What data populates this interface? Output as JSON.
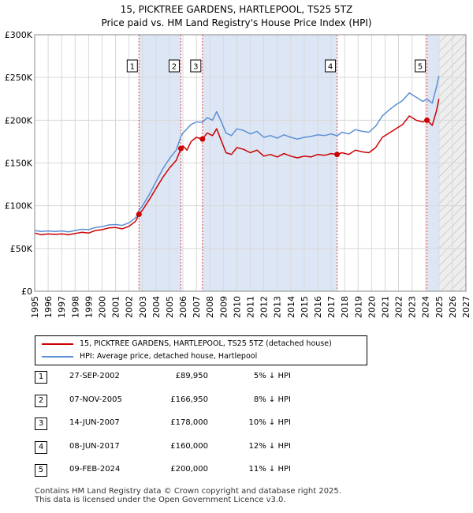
{
  "title_line1": "15, PICKTREE GARDENS, HARTLEPOOL, TS25 5TZ",
  "title_line2": "Price paid vs. HM Land Registry's House Price Index (HPI)",
  "colors": {
    "price_line": "#cc0000",
    "hpi_line": "#5b8fd4",
    "marker": "#cc0000",
    "shade": "#dde6f5",
    "vline": "#dd4444"
  },
  "chart_data": {
    "type": "line",
    "xlim": [
      1995,
      2027
    ],
    "ylim": [
      0,
      300000
    ],
    "y_ticks": [
      {
        "value": 0,
        "label": "£0"
      },
      {
        "value": 50000,
        "label": "£50K"
      },
      {
        "value": 100000,
        "label": "£100K"
      },
      {
        "value": 150000,
        "label": "£150K"
      },
      {
        "value": 200000,
        "label": "£200K"
      },
      {
        "value": 250000,
        "label": "£250K"
      },
      {
        "value": 300000,
        "label": "£300K"
      }
    ],
    "x_ticks": [
      "1995",
      "1996",
      "1997",
      "1998",
      "1999",
      "2000",
      "2001",
      "2002",
      "2003",
      "2004",
      "2005",
      "2006",
      "2007",
      "2008",
      "2009",
      "2010",
      "2011",
      "2012",
      "2013",
      "2014",
      "2015",
      "2016",
      "2017",
      "2018",
      "2019",
      "2020",
      "2021",
      "2022",
      "2023",
      "2024",
      "2025",
      "2026",
      "2027"
    ],
    "grid": true,
    "hatched_future_from": 2025.0,
    "series": [
      {
        "name": "15, PICKTREE GARDENS, HARTLEPOOL, TS25 5TZ (detached house)",
        "points": [
          [
            1995.0,
            68000
          ],
          [
            1995.5,
            66000
          ],
          [
            1996.0,
            67000
          ],
          [
            1996.5,
            66500
          ],
          [
            1997.0,
            67000
          ],
          [
            1997.5,
            66000
          ],
          [
            1998.0,
            67500
          ],
          [
            1998.5,
            69000
          ],
          [
            1999.0,
            68000
          ],
          [
            1999.5,
            71000
          ],
          [
            2000.0,
            72000
          ],
          [
            2000.5,
            74000
          ],
          [
            2001.0,
            74500
          ],
          [
            2001.5,
            73000
          ],
          [
            2002.0,
            76000
          ],
          [
            2002.5,
            82000
          ],
          [
            2002.74,
            89950
          ],
          [
            2003.0,
            95000
          ],
          [
            2003.5,
            107000
          ],
          [
            2004.0,
            120000
          ],
          [
            2004.5,
            133000
          ],
          [
            2005.0,
            144000
          ],
          [
            2005.5,
            153000
          ],
          [
            2005.85,
            166950
          ],
          [
            2006.0,
            170000
          ],
          [
            2006.3,
            165000
          ],
          [
            2006.6,
            175000
          ],
          [
            2007.0,
            180000
          ],
          [
            2007.45,
            178000
          ],
          [
            2007.8,
            185000
          ],
          [
            2008.2,
            182000
          ],
          [
            2008.5,
            190000
          ],
          [
            2008.8,
            178000
          ],
          [
            2009.2,
            162000
          ],
          [
            2009.6,
            160000
          ],
          [
            2010.0,
            168000
          ],
          [
            2010.5,
            166000
          ],
          [
            2011.0,
            162000
          ],
          [
            2011.5,
            165000
          ],
          [
            2012.0,
            158000
          ],
          [
            2012.5,
            160000
          ],
          [
            2013.0,
            157000
          ],
          [
            2013.5,
            161000
          ],
          [
            2014.0,
            158000
          ],
          [
            2014.5,
            156000
          ],
          [
            2015.0,
            158000
          ],
          [
            2015.5,
            157000
          ],
          [
            2016.0,
            160000
          ],
          [
            2016.5,
            159000
          ],
          [
            2017.0,
            161000
          ],
          [
            2017.44,
            160000
          ],
          [
            2017.8,
            162000
          ],
          [
            2018.3,
            160000
          ],
          [
            2018.8,
            165000
          ],
          [
            2019.3,
            163000
          ],
          [
            2019.8,
            162000
          ],
          [
            2020.3,
            168000
          ],
          [
            2020.8,
            180000
          ],
          [
            2021.3,
            185000
          ],
          [
            2021.8,
            190000
          ],
          [
            2022.3,
            195000
          ],
          [
            2022.8,
            205000
          ],
          [
            2023.3,
            200000
          ],
          [
            2023.8,
            198000
          ],
          [
            2024.11,
            200000
          ],
          [
            2024.5,
            194000
          ],
          [
            2024.8,
            210000
          ],
          [
            2025.0,
            225000
          ]
        ]
      },
      {
        "name": "HPI: Average price, detached house, Hartlepool",
        "points": [
          [
            1995.0,
            71000
          ],
          [
            1995.5,
            70000
          ],
          [
            1996.0,
            70500
          ],
          [
            1996.5,
            70000
          ],
          [
            1997.0,
            70500
          ],
          [
            1997.5,
            69500
          ],
          [
            1998.0,
            71000
          ],
          [
            1998.5,
            72500
          ],
          [
            1999.0,
            72000
          ],
          [
            1999.5,
            74500
          ],
          [
            2000.0,
            75500
          ],
          [
            2000.5,
            77500
          ],
          [
            2001.0,
            78000
          ],
          [
            2001.5,
            77000
          ],
          [
            2002.0,
            80000
          ],
          [
            2002.5,
            86000
          ],
          [
            2002.74,
            94500
          ],
          [
            2003.0,
            100000
          ],
          [
            2003.5,
            113000
          ],
          [
            2004.0,
            128000
          ],
          [
            2004.5,
            143000
          ],
          [
            2005.0,
            155000
          ],
          [
            2005.5,
            165000
          ],
          [
            2005.85,
            181000
          ],
          [
            2006.0,
            185000
          ],
          [
            2006.3,
            190000
          ],
          [
            2006.6,
            195000
          ],
          [
            2007.0,
            198000
          ],
          [
            2007.45,
            197500
          ],
          [
            2007.8,
            203000
          ],
          [
            2008.2,
            200000
          ],
          [
            2008.5,
            210000
          ],
          [
            2008.8,
            200000
          ],
          [
            2009.2,
            185000
          ],
          [
            2009.6,
            182000
          ],
          [
            2010.0,
            190000
          ],
          [
            2010.5,
            188000
          ],
          [
            2011.0,
            184000
          ],
          [
            2011.5,
            187000
          ],
          [
            2012.0,
            180000
          ],
          [
            2012.5,
            182000
          ],
          [
            2013.0,
            179000
          ],
          [
            2013.5,
            183000
          ],
          [
            2014.0,
            180000
          ],
          [
            2014.5,
            178000
          ],
          [
            2015.0,
            180000
          ],
          [
            2015.5,
            181000
          ],
          [
            2016.0,
            183000
          ],
          [
            2016.5,
            182000
          ],
          [
            2017.0,
            184000
          ],
          [
            2017.44,
            181800
          ],
          [
            2017.8,
            186000
          ],
          [
            2018.3,
            184000
          ],
          [
            2018.8,
            189000
          ],
          [
            2019.3,
            187000
          ],
          [
            2019.8,
            186000
          ],
          [
            2020.3,
            193000
          ],
          [
            2020.8,
            205000
          ],
          [
            2021.3,
            212000
          ],
          [
            2021.8,
            218000
          ],
          [
            2022.3,
            223000
          ],
          [
            2022.8,
            232000
          ],
          [
            2023.3,
            227000
          ],
          [
            2023.8,
            222000
          ],
          [
            2024.11,
            224700
          ],
          [
            2024.5,
            220000
          ],
          [
            2024.8,
            238000
          ],
          [
            2025.0,
            252000
          ]
        ]
      }
    ],
    "sales": [
      {
        "label": "1",
        "x": 2002.74,
        "y": 89950
      },
      {
        "label": "2",
        "x": 2005.85,
        "y": 166950
      },
      {
        "label": "3",
        "x": 2007.45,
        "y": 178000
      },
      {
        "label": "4",
        "x": 2017.44,
        "y": 160000
      },
      {
        "label": "5",
        "x": 2024.11,
        "y": 200000
      }
    ]
  },
  "legend": {
    "price_label": "15, PICKTREE GARDENS, HARTLEPOOL, TS25 5TZ (detached house)",
    "hpi_label": "HPI: Average price, detached house, Hartlepool"
  },
  "transactions": [
    {
      "num": "1",
      "date": "27-SEP-2002",
      "price": "£89,950",
      "hpi": "5% ↓ HPI"
    },
    {
      "num": "2",
      "date": "07-NOV-2005",
      "price": "£166,950",
      "hpi": "8% ↓ HPI"
    },
    {
      "num": "3",
      "date": "14-JUN-2007",
      "price": "£178,000",
      "hpi": "10% ↓ HPI"
    },
    {
      "num": "4",
      "date": "08-JUN-2017",
      "price": "£160,000",
      "hpi": "12% ↓ HPI"
    },
    {
      "num": "5",
      "date": "09-FEB-2024",
      "price": "£200,000",
      "hpi": "11% ↓ HPI"
    }
  ],
  "footer_line1": "Contains HM Land Registry data © Crown copyright and database right 2025.",
  "footer_line2": "This data is licensed under the Open Government Licence v3.0."
}
